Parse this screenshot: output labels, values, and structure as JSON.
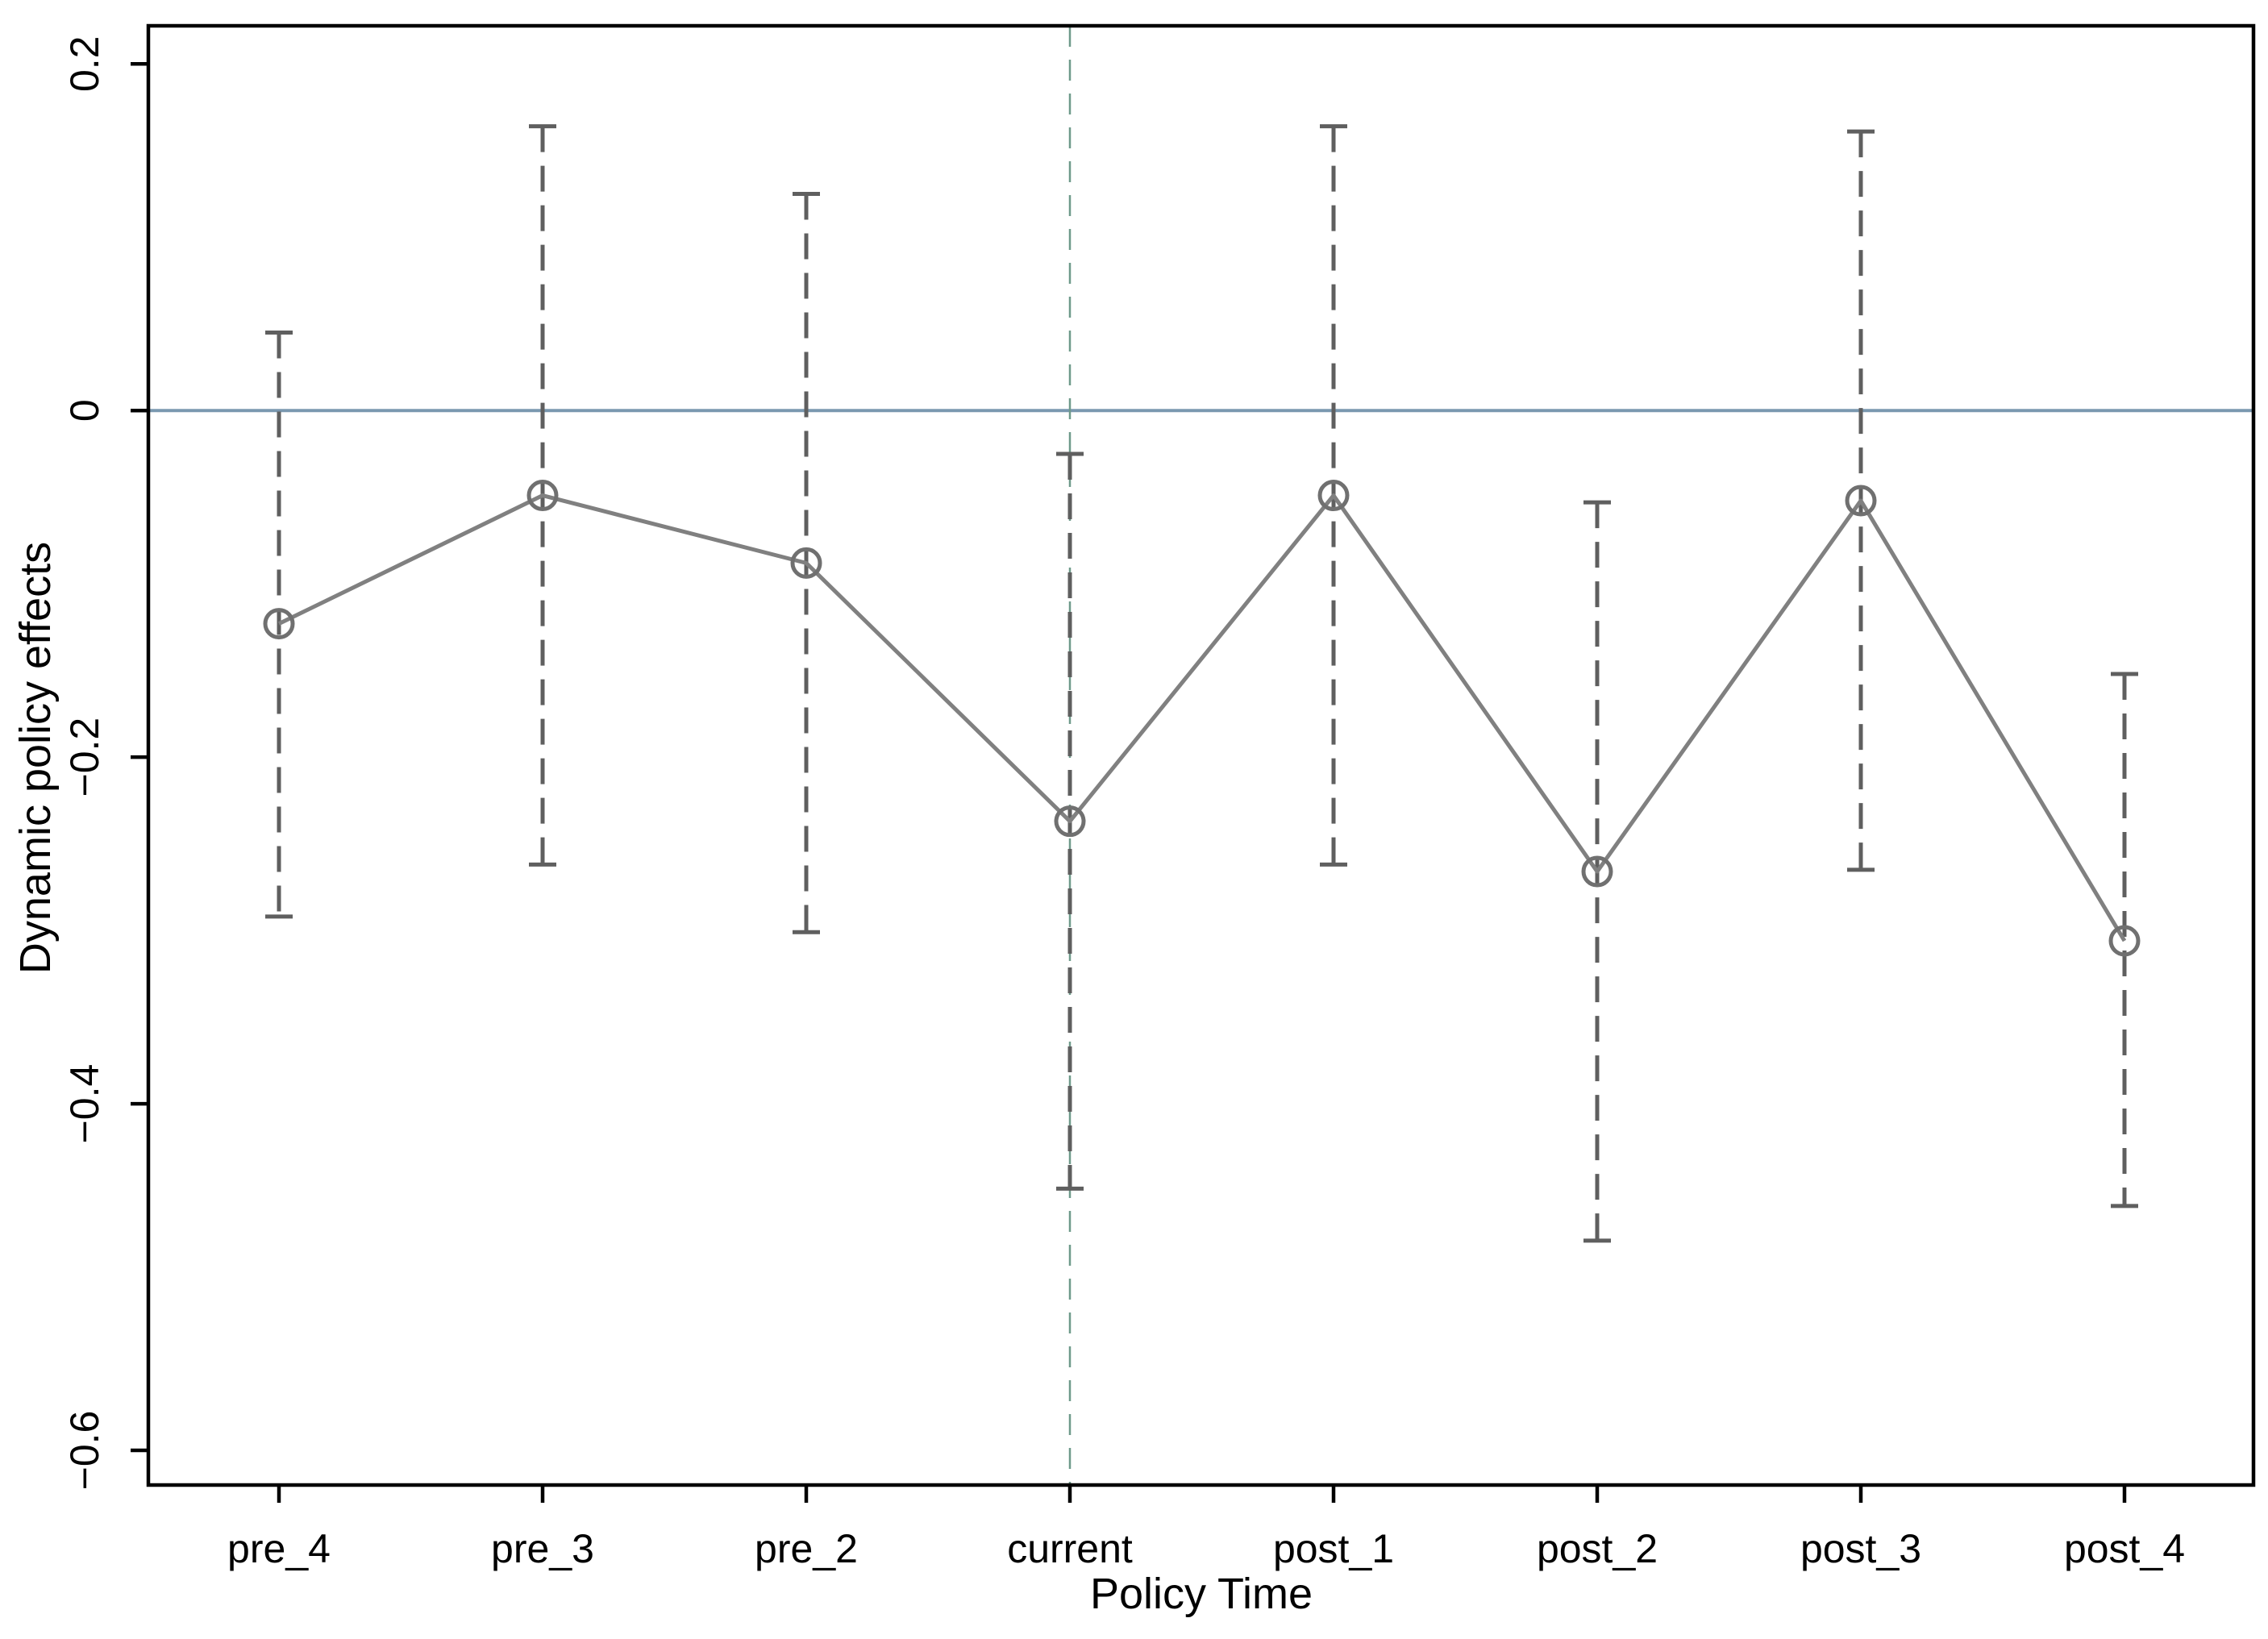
{
  "chart_data": {
    "type": "line",
    "title": "",
    "xlabel": "Policy Time",
    "ylabel": "Dynamic policy effects",
    "categories": [
      "pre_4",
      "pre_3",
      "pre_2",
      "current",
      "post_1",
      "post_2",
      "post_3",
      "post_4"
    ],
    "series": [
      {
        "values": [
          -0.123,
          -0.049,
          -0.088,
          -0.237,
          -0.049,
          -0.266,
          -0.052,
          -0.306
        ],
        "ci_lower": [
          -0.292,
          -0.262,
          -0.301,
          -0.449,
          -0.262,
          -0.479,
          -0.265,
          -0.459
        ],
        "ci_upper": [
          0.045,
          0.164,
          0.125,
          -0.025,
          0.164,
          -0.053,
          0.161,
          -0.152
        ]
      }
    ],
    "ylim": [
      -0.62,
      0.222
    ],
    "yticks": [
      0.2,
      0,
      -0.2,
      -0.4,
      -0.6
    ],
    "ytick_labels": [
      "0.2",
      "0",
      "−0.2",
      "−0.4",
      "−0.6"
    ],
    "reference_lines": {
      "horizontal_at": 0,
      "vertical_at_category": "current"
    },
    "grid": false,
    "legend": "none",
    "colors": {
      "series_line": "#808080",
      "error_bar": "#5f5f5f",
      "zero_line": "#7a98b0",
      "policy_line": "#6e9a8a",
      "axis": "#000000"
    }
  }
}
